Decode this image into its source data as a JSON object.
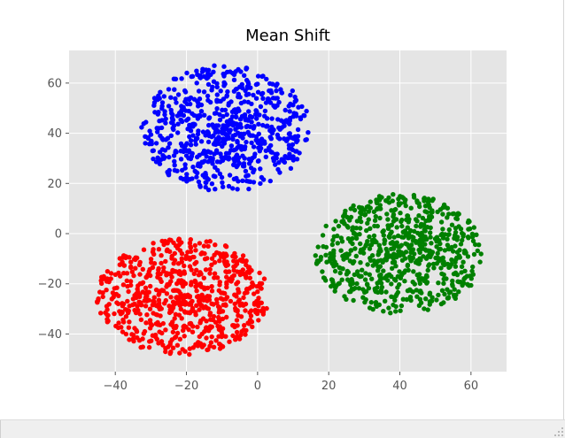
{
  "chart_data": {
    "type": "scatter",
    "title": "Mean Shift",
    "xlabel": "",
    "ylabel": "",
    "xlim": [
      -53,
      70
    ],
    "ylim": [
      -55,
      73
    ],
    "x_ticks": [
      -40,
      -20,
      0,
      20,
      40,
      60
    ],
    "y_ticks": [
      -40,
      -20,
      0,
      20,
      40,
      60
    ],
    "x_tick_labels": [
      "−40",
      "−20",
      "0",
      "20",
      "40",
      "60"
    ],
    "y_tick_labels": [
      "−40",
      "−20",
      "0",
      "20",
      "40",
      "60"
    ],
    "grid": true,
    "legend": "none",
    "style": "ggplot",
    "background_color": "#e5e5e5",
    "grid_color": "#ffffff",
    "clusters": [
      {
        "color": "#0000ff",
        "center": [
          -9,
          42
        ],
        "x_range": [
          -32,
          17
        ],
        "y_range": [
          16,
          68
        ],
        "approx_points": 700
      },
      {
        "color": "#ff0000",
        "center": [
          -21,
          -25
        ],
        "x_range": [
          -49,
          1
        ],
        "y_range": [
          -50,
          -2
        ],
        "approx_points": 700
      },
      {
        "color": "#008000",
        "center": [
          40,
          -8
        ],
        "x_range": [
          16,
          65
        ],
        "y_range": [
          -33,
          16
        ],
        "approx_points": 700
      }
    ]
  }
}
